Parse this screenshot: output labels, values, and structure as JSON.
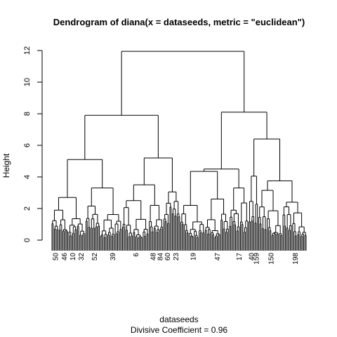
{
  "chart_data": {
    "type": "dendrogram",
    "title": "Dendrogram of  diana(x = dataseeds, metric = \"euclidean\")",
    "xlabel": "dataseeds",
    "ylabel": "Height",
    "subtitle": "Divisive Coefficient =  0.96",
    "ylim": [
      0,
      12
    ],
    "yticks": [
      0,
      2,
      4,
      6,
      8,
      10,
      12
    ],
    "grid": false,
    "n_leaves": 210,
    "merges": [
      {
        "name": "root",
        "height": 11.95,
        "children": [
          "A",
          "B"
        ]
      },
      {
        "name": "A",
        "height": 7.9,
        "children": [
          "A1",
          "A2"
        ]
      },
      {
        "name": "A1",
        "height": 5.1,
        "children": [
          "A1a",
          "A1b"
        ]
      },
      {
        "name": "A1a",
        "height": 2.7,
        "children": [],
        "leaves": 28
      },
      {
        "name": "A1b",
        "height": 3.3,
        "children": [],
        "leaves": 30
      },
      {
        "name": "A2",
        "height": 5.2,
        "children": [
          "A2a",
          "A2b"
        ]
      },
      {
        "name": "A2a",
        "height": 3.5,
        "children": [
          "A2a1",
          "A2a2"
        ]
      },
      {
        "name": "A2a1",
        "height": 2.5,
        "children": [],
        "leaves": 22
      },
      {
        "name": "A2a2",
        "height": 2.2,
        "children": [],
        "leaves": 12
      },
      {
        "name": "A2b",
        "height": 3.05,
        "children": [],
        "leaves": 14
      },
      {
        "name": "B",
        "height": 8.1,
        "children": [
          "B1",
          "B2"
        ]
      },
      {
        "name": "B1",
        "height": 4.5,
        "children": [
          "B1a",
          "B1b"
        ]
      },
      {
        "name": "B1a",
        "height": 4.35,
        "children": [
          "B1a1",
          "B1a2"
        ]
      },
      {
        "name": "B1a1",
        "height": 2.2,
        "children": [],
        "leaves": 20
      },
      {
        "name": "B1a2",
        "height": 2.6,
        "children": [],
        "leaves": 20
      },
      {
        "name": "B1b",
        "height": 3.3,
        "children": [],
        "leaves": 16
      },
      {
        "name": "B2",
        "height": 6.4,
        "children": [
          "B2a",
          "B2b"
        ]
      },
      {
        "name": "B2a",
        "height": 4.05,
        "children": [],
        "leaves": 8
      },
      {
        "name": "B2b",
        "height": 3.75,
        "children": [
          "B2b1",
          "B2b2"
        ]
      },
      {
        "name": "B2b1",
        "height": 3.15,
        "children": [],
        "leaves": 20
      },
      {
        "name": "B2b2",
        "height": 2.4,
        "children": [],
        "leaves": 20
      }
    ],
    "leaf_labels": [
      {
        "label": "50",
        "cluster": "A1a"
      },
      {
        "label": "46",
        "cluster": "A1a"
      },
      {
        "label": "10",
        "cluster": "A1a"
      },
      {
        "label": "32",
        "cluster": "A1a"
      },
      {
        "label": "52",
        "cluster": "A1b"
      },
      {
        "label": "39",
        "cluster": "A1b"
      },
      {
        "label": "6",
        "cluster": "A2a1"
      },
      {
        "label": "48",
        "cluster": "A2a2"
      },
      {
        "label": "84",
        "cluster": "A2a2"
      },
      {
        "label": "60",
        "cluster": "A2b"
      },
      {
        "label": "23",
        "cluster": "A2b"
      },
      {
        "label": "19",
        "cluster": "B1a1"
      },
      {
        "label": "47",
        "cluster": "B1a2"
      },
      {
        "label": "17",
        "cluster": "B1b"
      },
      {
        "label": "40",
        "cluster": "B2a"
      },
      {
        "label": "159",
        "cluster": "B2a"
      },
      {
        "label": "150",
        "cluster": "B2b1"
      },
      {
        "label": "198",
        "cluster": "B2b2"
      }
    ]
  }
}
